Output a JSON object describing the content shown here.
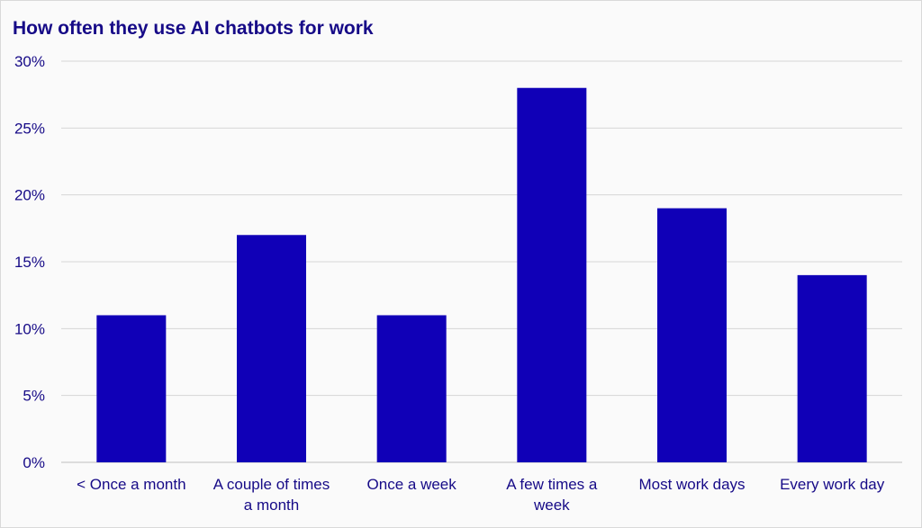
{
  "chart_data": {
    "type": "bar",
    "title": "How often they use AI chatbots for work",
    "categories": [
      [
        "< Once a month"
      ],
      [
        "A couple of times",
        "a month"
      ],
      [
        "Once a week"
      ],
      [
        "A few times a",
        "week"
      ],
      [
        "Most work days"
      ],
      [
        "Every work day"
      ]
    ],
    "values": [
      11,
      17,
      11,
      28,
      19,
      14
    ],
    "ylim": [
      0,
      30
    ],
    "yticks": [
      0,
      5,
      10,
      15,
      20,
      25,
      30
    ],
    "ytick_labels": [
      "0%",
      "5%",
      "10%",
      "15%",
      "20%",
      "25%",
      "30%"
    ],
    "grid": true,
    "colors": {
      "bar": "#1000b7",
      "grid": "#d6d6d6",
      "text": "#160a87"
    }
  }
}
